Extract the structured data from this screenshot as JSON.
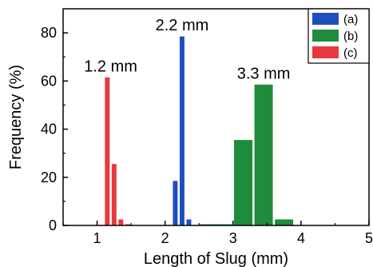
{
  "chart_data": {
    "type": "bar",
    "xlabel": "Length of Slug (mm)",
    "ylabel": "Frequency (%)",
    "xlim": [
      0.5,
      5
    ],
    "ylim": [
      0,
      90
    ],
    "xticks": [
      1,
      2,
      3,
      4,
      5
    ],
    "yticks": [
      0,
      20,
      40,
      60,
      80
    ],
    "grid": false,
    "legend_position": "top-right",
    "series": [
      {
        "name": "(a)",
        "color": "#1f4fbf",
        "bar_width": 0.07,
        "x": [
          2.15,
          2.25,
          2.35
        ],
        "values": [
          18.5,
          78.5,
          2.5
        ]
      },
      {
        "name": "(b)",
        "color": "#1e8c3a",
        "bar_width": 0.27,
        "x": [
          2.65,
          2.85,
          3.15,
          3.45,
          3.75
        ],
        "values": [
          0.5,
          0.5,
          35.5,
          58.5,
          2.5
        ]
      },
      {
        "name": "(c)",
        "color": "#e8383d",
        "bar_width": 0.07,
        "x": [
          1.15,
          1.25,
          1.35,
          1.45
        ],
        "values": [
          61.5,
          25.5,
          2.5,
          0.5
        ]
      }
    ],
    "annotations": [
      {
        "text": "1.2 mm",
        "x": 1.2,
        "y": 64
      },
      {
        "text": "2.2 mm",
        "x": 2.25,
        "y": 81
      },
      {
        "text": "3.3 mm",
        "x": 3.45,
        "y": 61
      }
    ]
  }
}
